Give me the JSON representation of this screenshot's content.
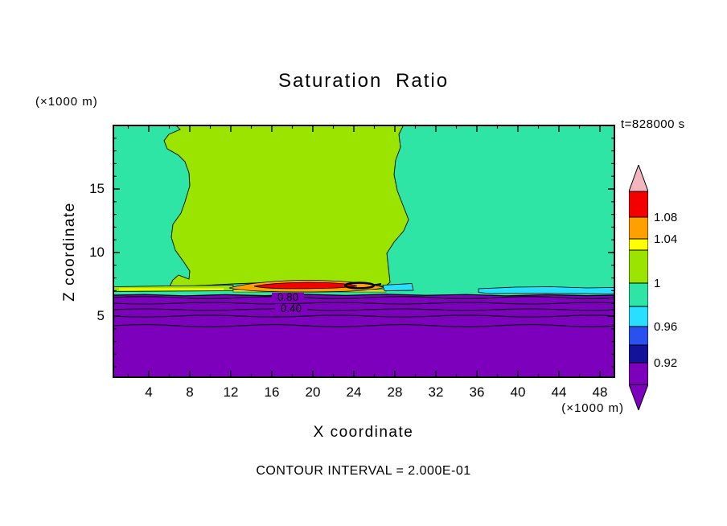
{
  "title": "Saturation Ratio",
  "header": {
    "y_axis_units": "(×1000 m)",
    "time_label": "t=828000 s"
  },
  "axes": {
    "x_label": "X coordinate",
    "y_label": "Z coordinate",
    "x_axis_units": "(×1000 m)",
    "x_tick_labels": [
      "4",
      "8",
      "12",
      "16",
      "20",
      "24",
      "28",
      "32",
      "36",
      "40",
      "44",
      "48"
    ],
    "y_tick_labels": [
      "15",
      "10",
      "5"
    ]
  },
  "plot": {
    "contour_labels": [
      "0.80",
      "0.40"
    ]
  },
  "colorbar": {
    "labels": [
      "1.08",
      "1.04",
      "1",
      "0.96",
      "0.92"
    ]
  },
  "footer": {
    "contour_interval_label": "CONTOUR INTERVAL = 2.000E-01"
  },
  "palette": {
    "pink": "#F4B6BE",
    "red": "#F40000",
    "orange": "#FFA000",
    "yellow": "#FFFF00",
    "chartreuse": "#9AE400",
    "springgreen": "#2FE5A5",
    "cyan": "#29DFFF",
    "blue": "#2B50F0",
    "navy": "#12129B",
    "purple": "#7C00BC",
    "line": "#000000"
  },
  "chart_data": {
    "type": "heatmap",
    "subtype": "filled-contour",
    "title": "Saturation Ratio",
    "xlabel": "X coordinate",
    "ylabel": "Z coordinate",
    "x_units": "×1000 m",
    "y_units": "×1000 m",
    "xlim": [
      0.5,
      50
    ],
    "ylim": [
      0,
      20
    ],
    "x_ticks": [
      4,
      8,
      12,
      16,
      20,
      24,
      28,
      32,
      36,
      40,
      44,
      48
    ],
    "y_ticks": [
      5,
      10,
      15
    ],
    "time_label": "t=828000 s",
    "contour_interval": 0.2,
    "colorbar_tick_values": [
      1.08,
      1.04,
      1.0,
      0.96,
      0.92
    ],
    "colorbar_colors_top_to_bottom": [
      "#F4B6BE",
      "#F40000",
      "#FFA000",
      "#FFFF00",
      "#9AE400",
      "#2FE5A5",
      "#29DFFF",
      "#2B50F0",
      "#12129B",
      "#7C00BC"
    ],
    "line_contour_labels": [
      0.8,
      0.4
    ],
    "features": [
      {
        "name": "background-air",
        "value_range": [
          0.96,
          1.0
        ],
        "description": "Green background: saturation ratio just below 1 everywhere above z≈7 km outside the cloud region"
      },
      {
        "name": "cloud-region",
        "value_range": [
          1.0,
          1.04
        ],
        "description": "Yellow-green slightly supersaturated region spanning x≈6–28, z≈7–20 with irregular contour boundaries"
      },
      {
        "name": "supersaturated-layer",
        "value_range": [
          1.04,
          1.14
        ],
        "description": "Thin layer at z≈7 between x≈12–26 with yellow/orange/red bands reaching above 1.08 and a small black-outlined maximum near x≈23–25"
      },
      {
        "name": "dry-pockets",
        "value_range": [
          0.92,
          0.96
        ],
        "description": "Thin cyan patches at z≈7 near x≈27–29 and along x≈37–50"
      },
      {
        "name": "subsaturated-ground-layer",
        "value_range": [
          0.2,
          0.92
        ],
        "description": "Purple region below z≈7: saturation ratio drops toward the surface; nearly horizontal line contours at interval 0.2 (labels 0.80 at z≈6.6 and 0.40 at z≈5.8) at z≈6.8, 6.4, 5.9, 5.4, 4.7"
      }
    ]
  }
}
